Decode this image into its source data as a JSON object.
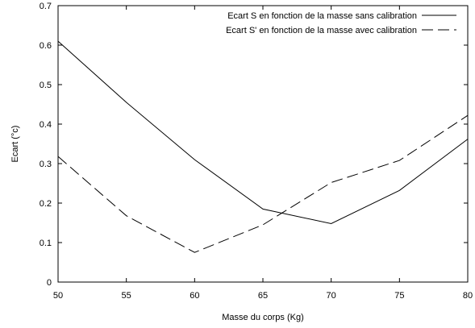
{
  "chart_data": {
    "type": "line",
    "title": "",
    "xlabel": "Masse du corps (Kg)",
    "ylabel": "Ecart (°c)",
    "xlim": [
      50,
      80
    ],
    "ylim": [
      0,
      0.7
    ],
    "xticks": [
      50,
      55,
      60,
      65,
      70,
      75,
      80
    ],
    "yticks": [
      0,
      0.1,
      0.2,
      0.3,
      0.4,
      0.5,
      0.6,
      0.7
    ],
    "xtick_labels": [
      "50",
      "55",
      "60",
      "65",
      "70",
      "75",
      "80"
    ],
    "ytick_labels": [
      "0",
      "0.1",
      "0.2",
      "0.3",
      "0.4",
      "0.5",
      "0.6",
      "0.7"
    ],
    "grid": false,
    "legend_position": "top-right",
    "x": [
      50,
      55,
      60,
      65,
      70,
      75,
      80
    ],
    "series": [
      {
        "name": "Ecart S en fonction de la masse sans calibration",
        "values": [
          0.61,
          0.455,
          0.31,
          0.185,
          0.148,
          0.232,
          0.362
        ],
        "style": "solid",
        "color": "#000000"
      },
      {
        "name": "Ecart S' en fonction de la masse avec calibration",
        "values": [
          0.318,
          0.168,
          0.075,
          0.145,
          0.252,
          0.308,
          0.422
        ],
        "style": "dashed",
        "color": "#000000"
      }
    ]
  }
}
